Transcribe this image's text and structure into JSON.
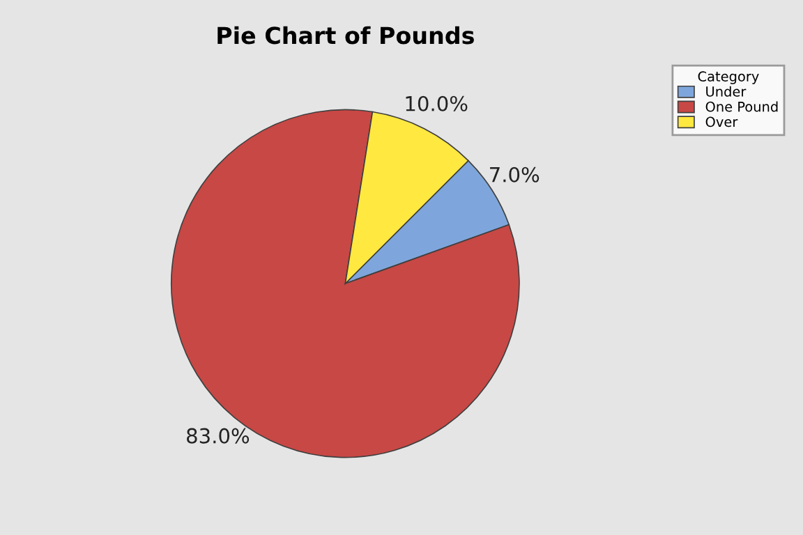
{
  "chart_data": {
    "type": "pie",
    "title": "Pie Chart of Pounds",
    "legend_title": "Category",
    "legend": "top right",
    "categories": [
      "Under",
      "One Pound",
      "Over"
    ],
    "values": [
      7,
      83,
      10
    ],
    "value_labels": [
      "7.0%",
      "83.0%",
      "10.0%"
    ],
    "colors": [
      "#7ea6dc",
      "#c84845",
      "#ffe840"
    ]
  }
}
